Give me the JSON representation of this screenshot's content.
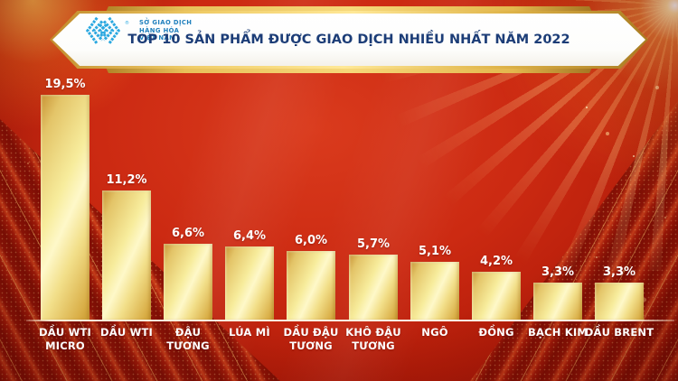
{
  "header": {
    "title": "TOP 10 SẢN PHẨM ĐƯỢC GIAO DỊCH NHIỀU NHẤT NĂM 2022",
    "logo": {
      "lines": [
        "SỞ GIAO DỊCH",
        "HÀNG HÓA",
        "VIỆT NAM"
      ],
      "registered_mark": "®",
      "icon": "mxv-chevron-diamond-icon",
      "icon_color": "#2BA8E0",
      "text_color": "#1F7FBD"
    }
  },
  "chart_data": {
    "type": "bar",
    "title": "TOP 10 SẢN PHẨM ĐƯỢC GIAO DỊCH NHIỀU NHẤT NĂM 2022",
    "categories": [
      "DẦU WTI MICRO",
      "DẦU WTI",
      "ĐẬU TƯƠNG",
      "LÚA MÌ",
      "DẦU ĐẬU TƯƠNG",
      "KHÔ ĐẬU TƯƠNG",
      "NGÔ",
      "ĐỒNG",
      "BẠCH KIM",
      "DẦU BRENT"
    ],
    "category_lines": [
      [
        "DẦU WTI",
        "MICRO"
      ],
      [
        "DẦU WTI"
      ],
      [
        "ĐẬU",
        "TƯƠNG"
      ],
      [
        "LÚA MÌ"
      ],
      [
        "DẦU ĐẬU",
        "TƯƠNG"
      ],
      [
        "KHÔ ĐẬU",
        "TƯƠNG"
      ],
      [
        "NGÔ"
      ],
      [
        "ĐỒNG"
      ],
      [
        "BẠCH KIM"
      ],
      [
        "DẦU BRENT"
      ]
    ],
    "values": [
      19.5,
      11.2,
      6.6,
      6.4,
      6.0,
      5.7,
      5.1,
      4.2,
      3.3,
      3.3
    ],
    "value_labels": [
      "19,5%",
      "11,2%",
      "6,6%",
      "6,4%",
      "6,0%",
      "5,7%",
      "5,1%",
      "4,2%",
      "3,3%",
      "3,3%"
    ],
    "unit": "%",
    "xlabel": "",
    "ylabel": "",
    "ylim": [
      0,
      20
    ],
    "grid": false,
    "legend": false,
    "bar_gradient": [
      "#C89334",
      "#F7EC9C",
      "#FEF8C9",
      "#D9AE47"
    ],
    "value_label_color": "#FFFFFF",
    "category_label_color": "#FFFFFF",
    "baseline_color": "#FBEFD9"
  },
  "colors": {
    "background_red": "#C32612",
    "background_center": "#DA3B1D",
    "background_dark": "#8E1106",
    "gold_banner": "#E8C15A",
    "title_navy": "#1C3D77"
  }
}
